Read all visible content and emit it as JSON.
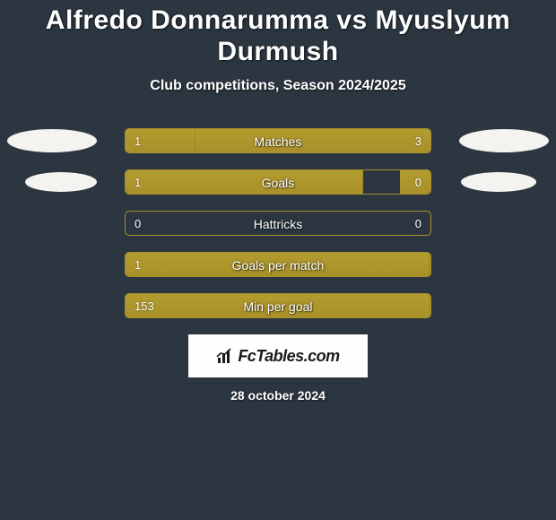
{
  "title": "Alfredo Donnarumma vs Myuslyum Durmush",
  "subtitle": "Club competitions, Season 2024/2025",
  "date": "28 october 2024",
  "brand": "FcTables.com",
  "background_color": "#2b3641",
  "bar_fill_color": "#ac942b",
  "bar_border_color": "#a99029",
  "ellipse_color": "#f5f3ef",
  "text_color": "#ffffff",
  "stats": [
    {
      "label": "Matches",
      "left_val": "1",
      "right_val": "3",
      "left_pct": 23,
      "right_pct": 77,
      "left_ellipse": true,
      "right_ellipse": true,
      "ellipse_variant": 1
    },
    {
      "label": "Goals",
      "left_val": "1",
      "right_val": "0",
      "left_pct": 78,
      "right_pct": 10,
      "left_ellipse": true,
      "right_ellipse": true,
      "ellipse_variant": 2
    },
    {
      "label": "Hattricks",
      "left_val": "0",
      "right_val": "0",
      "left_pct": 0,
      "right_pct": 0,
      "left_ellipse": false,
      "right_ellipse": false,
      "ellipse_variant": 0
    },
    {
      "label": "Goals per match",
      "left_val": "1",
      "right_val": "",
      "left_pct": 100,
      "right_pct": 0,
      "left_ellipse": false,
      "right_ellipse": false,
      "ellipse_variant": 0
    },
    {
      "label": "Min per goal",
      "left_val": "153",
      "right_val": "",
      "left_pct": 100,
      "right_pct": 0,
      "left_ellipse": false,
      "right_ellipse": false,
      "ellipse_variant": 0
    }
  ]
}
